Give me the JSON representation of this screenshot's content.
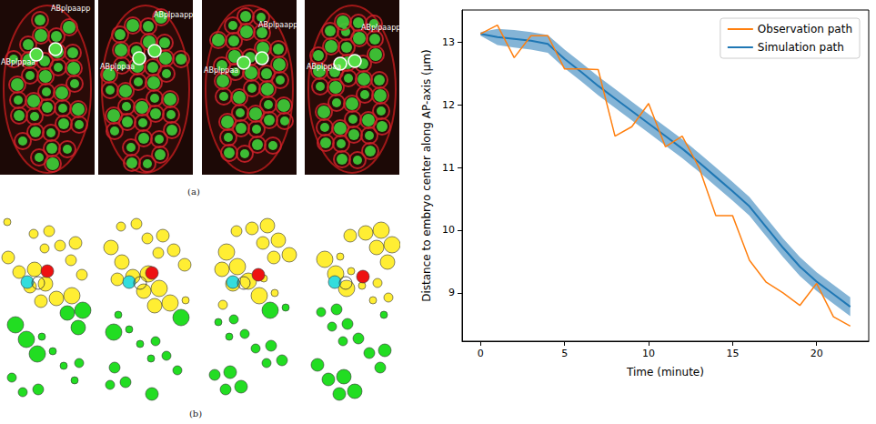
{
  "chart_data": {
    "type": "line",
    "x_label": "Time (minute)",
    "y_label": "Distance to embryo center along AP-axis (μm)",
    "x": [
      0,
      1,
      2,
      3,
      4,
      5,
      6,
      7,
      8,
      9,
      10,
      11,
      12,
      13,
      14,
      15,
      16,
      17,
      18,
      19,
      20,
      21,
      22
    ],
    "series": [
      {
        "name": "Observation path",
        "color": "#ff7f0e",
        "values": [
          13.13,
          13.27,
          12.75,
          13.1,
          13.1,
          12.57,
          12.57,
          12.56,
          11.5,
          11.65,
          12.02,
          11.33,
          11.5,
          11.0,
          10.23,
          10.23,
          9.52,
          9.17,
          9.0,
          8.8,
          9.15,
          8.62,
          8.47
        ]
      },
      {
        "name": "Simulation path",
        "color": "#1f77b4",
        "values": [
          13.13,
          13.08,
          13.05,
          13.02,
          12.97,
          12.73,
          12.52,
          12.3,
          12.1,
          11.9,
          11.7,
          11.5,
          11.3,
          11.08,
          10.85,
          10.62,
          10.38,
          10.05,
          9.72,
          9.42,
          9.18,
          8.98,
          8.78
        ],
        "lower": [
          13.1,
          12.95,
          12.91,
          12.88,
          12.83,
          12.58,
          12.37,
          12.15,
          11.95,
          11.75,
          11.55,
          11.35,
          11.15,
          10.93,
          10.7,
          10.47,
          10.23,
          9.9,
          9.57,
          9.27,
          9.03,
          8.83,
          8.63
        ],
        "upper": [
          13.16,
          13.21,
          13.19,
          13.16,
          13.11,
          12.88,
          12.67,
          12.45,
          12.25,
          12.05,
          11.85,
          11.65,
          11.45,
          11.23,
          11.0,
          10.77,
          10.53,
          10.2,
          9.87,
          9.57,
          9.33,
          9.13,
          8.93
        ]
      }
    ],
    "xlim": [
      -1.1,
      23.1
    ],
    "xticks": [
      0,
      5,
      10,
      15,
      20
    ],
    "ylim": [
      8.23,
      13.51
    ],
    "yticks": [
      9,
      10,
      11,
      12,
      13
    ],
    "grid": false,
    "legend": "upper right"
  },
  "figure": {
    "panel_a": {
      "label": "(a)",
      "frames": [
        {
          "left_cell": "ABplppaa",
          "right_cell": "ABplpaapp"
        },
        {
          "left_cell": "ABplppaa",
          "right_cell": "ABplpaapp"
        },
        {
          "left_cell": "ABplppaa",
          "right_cell": "ABplpaapp"
        },
        {
          "left_cell": "ABplppaa",
          "right_cell": "ABplpaapp"
        }
      ]
    },
    "panel_b": {
      "label": "(b)"
    }
  }
}
